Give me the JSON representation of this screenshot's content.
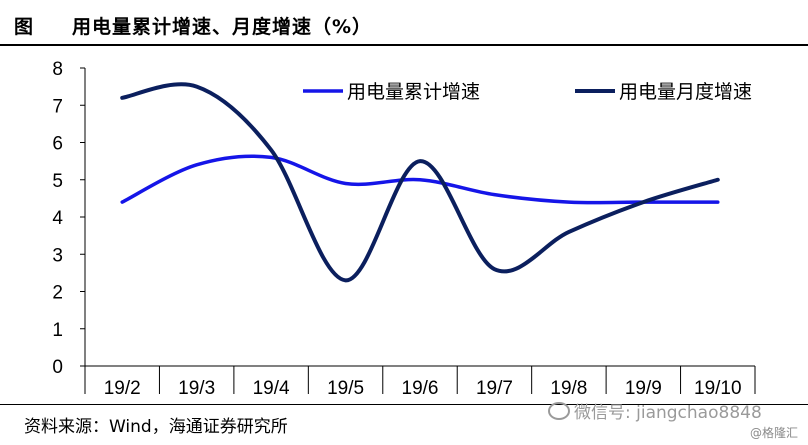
{
  "header": {
    "prefix": "图",
    "title": "用电量累计增速、月度增速（%）"
  },
  "footer": {
    "source": "资料来源：Wind，海通证券研究所"
  },
  "watermarks": {
    "wechat": "微信号: jiangchao8848",
    "brand": "@格隆汇"
  },
  "chart_data": {
    "type": "line",
    "categories": [
      "19/2",
      "19/3",
      "19/4",
      "19/5",
      "19/6",
      "19/7",
      "19/8",
      "19/9",
      "19/10"
    ],
    "series": [
      {
        "name": "用电量累计增速",
        "color": "#1515e8",
        "values": [
          4.4,
          5.4,
          5.6,
          4.9,
          5.0,
          4.6,
          4.4,
          4.4,
          4.4
        ]
      },
      {
        "name": "用电量月度增速",
        "color": "#0b1f5e",
        "values": [
          7.2,
          7.5,
          5.8,
          2.3,
          5.5,
          2.6,
          3.6,
          4.4,
          5.0
        ]
      }
    ],
    "yticks": [
      0,
      1,
      2,
      3,
      4,
      5,
      6,
      7,
      8
    ],
    "ylim": [
      0,
      8
    ],
    "grid": false,
    "legend": "top-right"
  }
}
